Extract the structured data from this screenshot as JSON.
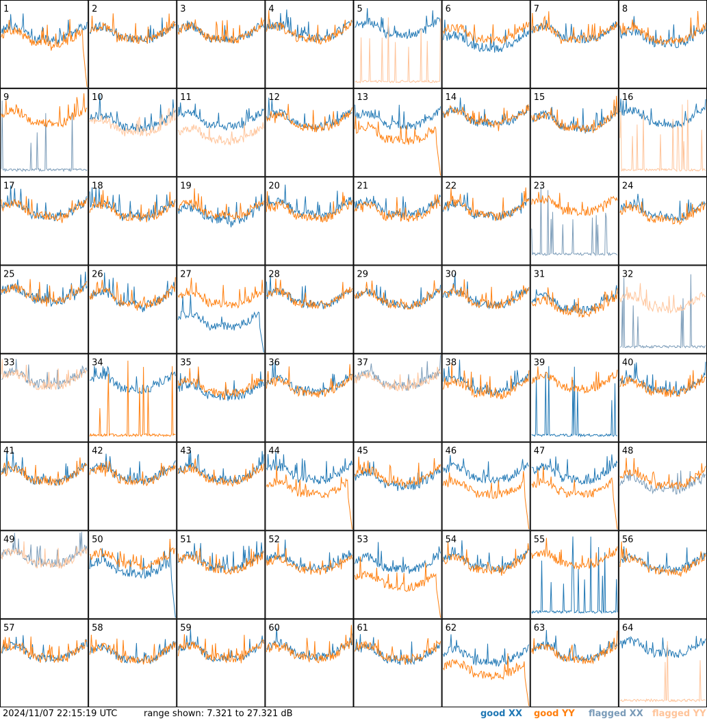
{
  "footer": {
    "timestamp": "2024/11/07 22:15:19 UTC",
    "range_label": "range shown: 7.321 to 27.321 dB"
  },
  "legend": [
    {
      "label": "good XX",
      "color": "#1f77b4"
    },
    {
      "label": "good YY",
      "color": "#ff7f0e"
    },
    {
      "label": "flagged XX",
      "color": "#7a9bb8"
    },
    {
      "label": "flagged YY",
      "color": "#ffc49a"
    }
  ],
  "chart_data": {
    "type": "line",
    "grid": {
      "rows": 8,
      "cols": 8
    },
    "ylim_db": [
      7.321,
      27.321
    ],
    "series_names": [
      "good XX",
      "good YY",
      "flagged XX",
      "flagged YY"
    ],
    "tiles": [
      {
        "id": "1",
        "xx": "good",
        "yy": "good",
        "xx_level": 0.6,
        "yy_level": 0.55,
        "yy_drop_end": true
      },
      {
        "id": "2",
        "xx": "good",
        "yy": "good",
        "xx_level": 0.6,
        "yy_level": 0.6
      },
      {
        "id": "3",
        "xx": "good",
        "yy": "good",
        "xx_level": 0.6,
        "yy_level": 0.6
      },
      {
        "id": "4",
        "xx": "good",
        "yy": "good",
        "xx_level": 0.62,
        "yy_level": 0.6
      },
      {
        "id": "5",
        "xx": "good",
        "yy": "flagged",
        "xx_level": 0.65,
        "yy_level": 0.05,
        "yy_spikes": true
      },
      {
        "id": "6",
        "xx": "good",
        "yy": "good",
        "xx_level": 0.5,
        "yy_level": 0.6
      },
      {
        "id": "7",
        "xx": "good",
        "yy": "good",
        "xx_level": 0.6,
        "yy_level": 0.6
      },
      {
        "id": "8",
        "xx": "good",
        "yy": "good",
        "xx_level": 0.55,
        "yy_level": 0.58
      },
      {
        "id": "9",
        "xx": "flagged",
        "yy": "good",
        "xx_level": 0.05,
        "yy_level": 0.65,
        "xx_spikes": true
      },
      {
        "id": "10",
        "xx": "good",
        "yy": "flagged",
        "xx_level": 0.6,
        "yy_level": 0.55
      },
      {
        "id": "11",
        "xx": "good",
        "yy": "flagged",
        "xx_level": 0.62,
        "yy_level": 0.45
      },
      {
        "id": "12",
        "xx": "good",
        "yy": "good",
        "xx_level": 0.62,
        "yy_level": 0.6
      },
      {
        "id": "13",
        "xx": "good",
        "yy": "good",
        "xx_level": 0.62,
        "yy_level": 0.45,
        "yy_drop_end": true
      },
      {
        "id": "14",
        "xx": "good",
        "yy": "good",
        "xx_level": 0.65,
        "yy_level": 0.65
      },
      {
        "id": "15",
        "xx": "good",
        "yy": "good",
        "xx_level": 0.6,
        "yy_level": 0.6
      },
      {
        "id": "16",
        "xx": "good",
        "yy": "flagged",
        "xx_level": 0.65,
        "yy_level": 0.05,
        "yy_spikes": true
      },
      {
        "id": "17",
        "xx": "good",
        "yy": "good",
        "xx_level": 0.6,
        "yy_level": 0.6
      },
      {
        "id": "18",
        "xx": "good",
        "yy": "good",
        "xx_level": 0.6,
        "yy_level": 0.58
      },
      {
        "id": "19",
        "xx": "good",
        "yy": "good",
        "xx_level": 0.55,
        "yy_level": 0.6
      },
      {
        "id": "20",
        "xx": "good",
        "yy": "good",
        "xx_level": 0.62,
        "yy_level": 0.58
      },
      {
        "id": "21",
        "xx": "good",
        "yy": "good",
        "xx_level": 0.62,
        "yy_level": 0.58
      },
      {
        "id": "22",
        "xx": "good",
        "yy": "good",
        "xx_level": 0.6,
        "yy_level": 0.6
      },
      {
        "id": "23",
        "xx": "flagged",
        "yy": "good",
        "xx_level": 0.1,
        "yy_level": 0.65,
        "xx_spikes": true
      },
      {
        "id": "24",
        "xx": "good",
        "yy": "good",
        "xx_level": 0.58,
        "yy_level": 0.55
      },
      {
        "id": "25",
        "xx": "good",
        "yy": "good",
        "xx_level": 0.65,
        "yy_level": 0.65
      },
      {
        "id": "26",
        "xx": "good",
        "yy": "good",
        "xx_level": 0.6,
        "yy_level": 0.6
      },
      {
        "id": "27",
        "xx": "good",
        "yy": "good",
        "xx_level": 0.35,
        "yy_level": 0.6,
        "xx_drop_end": true
      },
      {
        "id": "28",
        "xx": "good",
        "yy": "good",
        "xx_level": 0.6,
        "yy_level": 0.6
      },
      {
        "id": "29",
        "xx": "good",
        "yy": "good",
        "xx_level": 0.6,
        "yy_level": 0.6
      },
      {
        "id": "30",
        "xx": "good",
        "yy": "good",
        "xx_level": 0.6,
        "yy_level": 0.6
      },
      {
        "id": "31",
        "xx": "good",
        "yy": "good",
        "xx_level": 0.55,
        "yy_level": 0.5
      },
      {
        "id": "32",
        "xx": "flagged",
        "yy": "flagged",
        "xx_level": 0.05,
        "yy_level": 0.55,
        "xx_spikes": true
      },
      {
        "id": "33",
        "xx": "flagged",
        "yy": "flagged",
        "xx_level": 0.7,
        "yy_level": 0.68
      },
      {
        "id": "34",
        "xx": "good",
        "yy": "good",
        "xx_level": 0.65,
        "yy_level": 0.05,
        "yy_spikes": true
      },
      {
        "id": "35",
        "xx": "good",
        "yy": "good",
        "xx_level": 0.55,
        "yy_level": 0.6
      },
      {
        "id": "36",
        "xx": "good",
        "yy": "good",
        "xx_level": 0.62,
        "yy_level": 0.6
      },
      {
        "id": "37",
        "xx": "flagged",
        "yy": "flagged",
        "xx_level": 0.68,
        "yy_level": 0.66
      },
      {
        "id": "38",
        "xx": "good",
        "yy": "good",
        "xx_level": 0.62,
        "yy_level": 0.58
      },
      {
        "id": "39",
        "xx": "good",
        "yy": "good",
        "xx_level": 0.05,
        "yy_level": 0.65,
        "xx_spikes": true
      },
      {
        "id": "40",
        "xx": "good",
        "yy": "good",
        "xx_level": 0.62,
        "yy_level": 0.6
      },
      {
        "id": "41",
        "xx": "good",
        "yy": "good",
        "xx_level": 0.6,
        "yy_level": 0.6
      },
      {
        "id": "42",
        "xx": "good",
        "yy": "good",
        "xx_level": 0.62,
        "yy_level": 0.6
      },
      {
        "id": "43",
        "xx": "good",
        "yy": "good",
        "xx_level": 0.62,
        "yy_level": 0.6
      },
      {
        "id": "44",
        "xx": "good",
        "yy": "good",
        "xx_level": 0.62,
        "yy_level": 0.45,
        "yy_drop_end": true
      },
      {
        "id": "45",
        "xx": "good",
        "yy": "good",
        "xx_level": 0.55,
        "yy_level": 0.58
      },
      {
        "id": "46",
        "xx": "good",
        "yy": "good",
        "xx_level": 0.62,
        "yy_level": 0.45,
        "yy_drop_end": true
      },
      {
        "id": "47",
        "xx": "good",
        "yy": "good",
        "xx_level": 0.62,
        "yy_level": 0.45,
        "yy_drop_end": true
      },
      {
        "id": "48",
        "xx": "flagged",
        "yy": "good",
        "xx_level": 0.5,
        "yy_level": 0.55
      },
      {
        "id": "49",
        "xx": "flagged",
        "yy": "flagged",
        "xx_level": 0.68,
        "yy_level": 0.66
      },
      {
        "id": "50",
        "xx": "good",
        "yy": "good",
        "xx_level": 0.55,
        "yy_level": 0.65,
        "xx_drop_end": true
      },
      {
        "id": "51",
        "xx": "good",
        "yy": "good",
        "xx_level": 0.62,
        "yy_level": 0.6
      },
      {
        "id": "52",
        "xx": "good",
        "yy": "good",
        "xx_level": 0.62,
        "yy_level": 0.58
      },
      {
        "id": "53",
        "xx": "good",
        "yy": "good",
        "xx_level": 0.6,
        "yy_level": 0.4,
        "yy_drop_end": true
      },
      {
        "id": "54",
        "xx": "good",
        "yy": "good",
        "xx_level": 0.62,
        "yy_level": 0.6
      },
      {
        "id": "55",
        "xx": "good",
        "yy": "good",
        "xx_level": 0.05,
        "yy_level": 0.65,
        "xx_spikes": true
      },
      {
        "id": "56",
        "xx": "good",
        "yy": "good",
        "xx_level": 0.6,
        "yy_level": 0.58
      },
      {
        "id": "57",
        "xx": "good",
        "yy": "good",
        "xx_level": 0.6,
        "yy_level": 0.6
      },
      {
        "id": "58",
        "xx": "good",
        "yy": "good",
        "xx_level": 0.58,
        "yy_level": 0.58
      },
      {
        "id": "59",
        "xx": "good",
        "yy": "good",
        "xx_level": 0.6,
        "yy_level": 0.6
      },
      {
        "id": "60",
        "xx": "good",
        "yy": "good",
        "xx_level": 0.62,
        "yy_level": 0.6
      },
      {
        "id": "61",
        "xx": "good",
        "yy": "good",
        "xx_level": 0.58,
        "yy_level": 0.6
      },
      {
        "id": "62",
        "xx": "good",
        "yy": "good",
        "xx_level": 0.55,
        "yy_level": 0.4,
        "yy_drop_end": true
      },
      {
        "id": "63",
        "xx": "good",
        "yy": "good",
        "xx_level": 0.6,
        "yy_level": 0.58
      },
      {
        "id": "64",
        "xx": "good",
        "yy": "flagged",
        "xx_level": 0.65,
        "yy_level": 0.05,
        "yy_spikes": true
      }
    ]
  }
}
